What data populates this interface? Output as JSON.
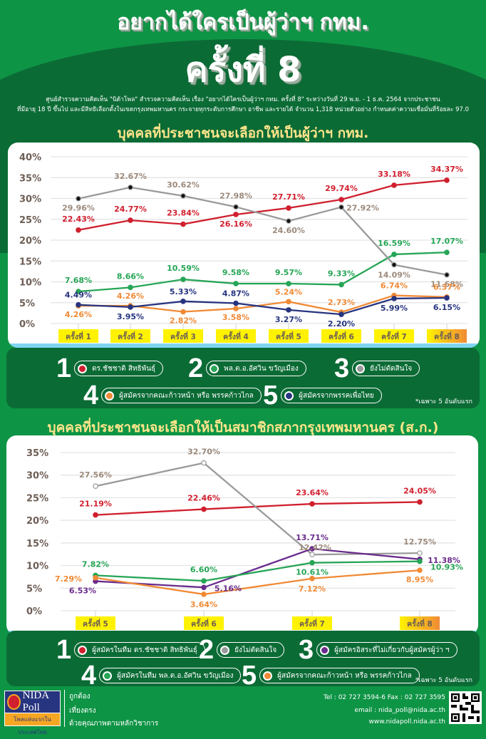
{
  "header": {
    "title_line1": "อยากได้ใครเป็นผู้ว่าฯ กทม.",
    "title_line2": "ครั้งที่ 8",
    "description_line1": "ศูนย์สำรวจความคิดเห็น \"นิด้าโพล\" สำรวจความคิดเห็น เรื่อง \"อยากได้ใครเป็นผู้ว่าฯ กทม. ครั้งที่ 8\" ระหว่างวันที่ 29 พ.ย. - 1 ธ.ค. 2564 จากประชาชน",
    "description_line2": "ที่มีอายุ 18 ปี ขึ้นไป และมีสิทธิเลือกตั้งในเขตกรุงเทพมหานคร กระจายทุกระดับการศึกษา อาชีพ และรายได้ จำนวน 1,318 หน่วยตัวอย่าง กำหนดค่าความเชื่อมั่นที่ร้อยละ 97.0"
  },
  "colors": {
    "background_green": "#0e9445",
    "dark_green": "#0b6b35",
    "section_title": "#ffe58a",
    "red": "#d01f2e",
    "green": "#26a556",
    "gray": "#9a9a9a",
    "orange": "#f08a36",
    "navy": "#27347f",
    "purple": "#6a2b8c",
    "label_gray": "#9c8a7c",
    "xtick_bg": "#fff200"
  },
  "chart_data": [
    {
      "type": "line",
      "title": "บุคคลที่ประชาชนจะเลือกให้เป็นผู้ว่าฯ กทม.",
      "xlabel": "",
      "ylabel": "",
      "ylim": [
        0,
        40
      ],
      "yticks": [
        "0%",
        "5%",
        "10%",
        "15%",
        "20%",
        "25%",
        "30%",
        "35%",
        "40%"
      ],
      "grid": true,
      "categories": [
        "ครั้งที่ 1",
        "ครั้งที่ 2",
        "ครั้งที่ 3",
        "ครั้งที่ 4",
        "ครั้งที่ 5",
        "ครั้งที่ 6",
        "ครั้งที่ 7",
        "ครั้งที่ 8"
      ],
      "series": [
        {
          "name": "ดร.ชัชชาติ สิทธิพันธุ์",
          "rank": "1",
          "color": "#d01f2e",
          "values": [
            22.43,
            24.77,
            23.84,
            26.16,
            27.71,
            29.74,
            33.18,
            34.37
          ]
        },
        {
          "name": "พล.ต.อ.อัศวิน ขวัญเมือง",
          "rank": "2",
          "color": "#26a556",
          "values": [
            7.68,
            8.66,
            10.59,
            9.58,
            9.57,
            9.33,
            16.59,
            17.07
          ]
        },
        {
          "name": "ยังไม่ตัดสินใจ",
          "rank": "3",
          "color": "#9a9a9a",
          "values": [
            29.96,
            32.67,
            30.62,
            27.98,
            24.6,
            27.92,
            14.09,
            11.68
          ]
        },
        {
          "name": "ผู้สมัครจากคณะก้าวหน้า หรือ พรรคก้าวไกล",
          "rank": "4",
          "color": "#f08a36",
          "values": [
            4.26,
            4.26,
            2.82,
            3.58,
            5.24,
            2.73,
            6.74,
            6.37
          ]
        },
        {
          "name": "ผู้สมัครจากพรรคเพื่อไทย",
          "rank": "5",
          "color": "#27347f",
          "values": [
            4.49,
            3.95,
            5.33,
            4.87,
            3.27,
            2.2,
            5.99,
            6.15
          ]
        }
      ],
      "legend_position": "bottom",
      "note": "*เฉพาะ 5 อันดับแรก"
    },
    {
      "type": "line",
      "title": "บุคคลที่ประชาชนจะเลือกให้เป็นสมาชิกสภากรุงเทพมหานคร (ส.ก.)",
      "xlabel": "",
      "ylabel": "",
      "ylim": [
        0,
        35
      ],
      "yticks": [
        "0%",
        "5%",
        "10%",
        "15%",
        "20%",
        "25%",
        "30%",
        "35%"
      ],
      "grid": true,
      "categories": [
        "ครั้งที่ 5",
        "ครั้งที่ 6",
        "ครั้งที่ 7",
        "ครั้งที่ 8"
      ],
      "series": [
        {
          "name": "ผู้สมัครในทีม ดร.ชัชชาติ สิทธิพันธุ์",
          "rank": "1",
          "color": "#d01f2e",
          "values": [
            21.19,
            22.46,
            23.64,
            24.05
          ]
        },
        {
          "name": "ยังไม่ตัดสินใจ",
          "rank": "2",
          "color": "#9a9a9a",
          "values": [
            27.56,
            32.7,
            12.42,
            12.75
          ]
        },
        {
          "name": "ผู้สมัครอิสระที่ไม่เกี่ยวกับผู้สมัครผู้ว่า ฯ",
          "rank": "3",
          "color": "#6a2b8c",
          "values": [
            6.53,
            5.16,
            13.71,
            11.38
          ]
        },
        {
          "name": "ผู้สมัครในทีม พล.ต.อ.อัศวิน ขวัญเมือง",
          "rank": "4",
          "color": "#26a556",
          "values": [
            7.82,
            6.6,
            10.61,
            10.93
          ]
        },
        {
          "name": "ผู้สมัครจากคณะก้าวหน้า หรือ พรรคก้าวไกล",
          "rank": "5",
          "color": "#f08a36",
          "values": [
            7.29,
            3.64,
            7.12,
            8.95
          ]
        }
      ],
      "legend_position": "bottom",
      "note": "*เฉพาะ 5 อันดับแรก"
    }
  ],
  "chart1_labels": {
    "red": [
      "22.43%",
      "24.77%",
      "23.84%",
      "26.16%",
      "27.71%",
      "29.74%",
      "33.18%",
      "34.37%"
    ],
    "green": [
      "7.68%",
      "8.66%",
      "10.59%",
      "9.58%",
      "9.57%",
      "9.33%",
      "16.59%",
      "17.07%"
    ],
    "gray": [
      "29.96%",
      "32.67%",
      "30.62%",
      "27.98%",
      "24.60%",
      "27.92%",
      "14.09%",
      "11.68%"
    ],
    "orange": [
      "4.26%",
      "4.26%",
      "2.82%",
      "3.58%",
      "5.24%",
      "2.73%",
      "6.74%",
      "6.37%"
    ],
    "navy": [
      "4.49%",
      "3.95%",
      "5.33%",
      "4.87%",
      "3.27%",
      "2.20%",
      "5.99%",
      "6.15%"
    ]
  },
  "chart2_labels": {
    "red": [
      "21.19%",
      "22.46%",
      "23.64%",
      "24.05%"
    ],
    "gray": [
      "27.56%",
      "32.70%",
      "12.42%",
      "12.75%"
    ],
    "purple": [
      "6.53%",
      "5.16%",
      "13.71%",
      "11.38%"
    ],
    "green": [
      "7.82%",
      "6.60%",
      "10.61%",
      "10.93%"
    ],
    "orange": [
      "7.29%",
      "3.64%",
      "7.12%",
      "8.95%"
    ]
  },
  "footer": {
    "logo_text": "NIDA Poll",
    "logo_tagline": "โพลแห่งแรกในประเทศไทย",
    "motto1": "ถูกต้อง",
    "motto2": "เที่ยงตรง",
    "motto3": "ด้วยคุณภาพตามหลักวิชาการ",
    "tel": "Tel : 02 727 3594-6 Fax : 02 727 3595",
    "email": "email : nida_poll@nida.ac.th",
    "website": "www.nidapoll.nida.ac.th"
  }
}
